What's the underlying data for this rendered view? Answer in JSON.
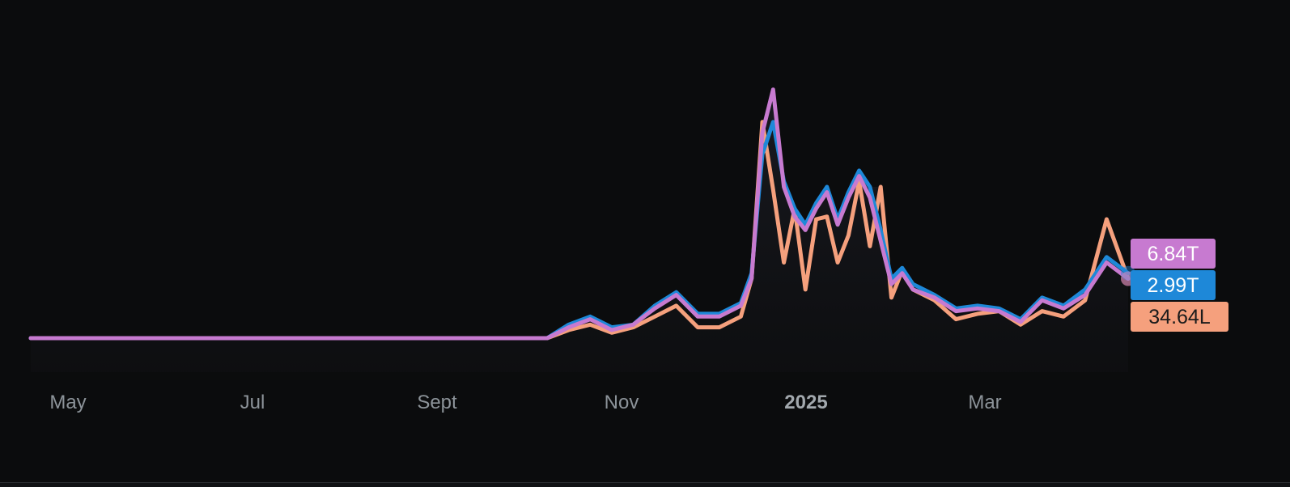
{
  "chart_data": {
    "type": "line",
    "title": "",
    "xlabel": "",
    "ylabel": "",
    "x_tick_labels": [
      "May",
      "Jul",
      "Sept",
      "Nov",
      "2025",
      "Mar"
    ],
    "x_tick_bold": [
      false,
      false,
      false,
      false,
      true,
      false
    ],
    "x_range": [
      0,
      51
    ],
    "ylim": [
      0,
      100
    ],
    "grid": false,
    "legend": "none",
    "x": [
      0,
      2,
      4,
      6,
      8,
      10,
      12,
      14,
      16,
      18,
      20,
      22,
      24,
      25,
      26,
      27,
      28,
      29,
      30,
      31,
      32,
      33,
      33.5,
      34,
      34.5,
      35,
      35.5,
      36,
      36.5,
      37,
      37.5,
      38,
      38.5,
      39,
      39.5,
      40,
      40.5,
      41,
      42,
      43,
      44,
      45,
      46,
      47,
      48,
      49,
      50,
      51
    ],
    "series": [
      {
        "color": "#f5a07d",
        "values": [
          0,
          0,
          0,
          0,
          0,
          0,
          0,
          0,
          0,
          0,
          0,
          0,
          0,
          3,
          5,
          2,
          4,
          8,
          12,
          4,
          4,
          8,
          22,
          80,
          55,
          28,
          48,
          18,
          44,
          45,
          28,
          38,
          58,
          34,
          56,
          15,
          25,
          18,
          14,
          7,
          9,
          10,
          5,
          10,
          8,
          14,
          44,
          22
        ]
      },
      {
        "color": "#1e88d8",
        "values": [
          0,
          0,
          0,
          0,
          0,
          0,
          0,
          0,
          0,
          0,
          0,
          0,
          0,
          5,
          8,
          4,
          5,
          12,
          17,
          9,
          9,
          13,
          24,
          68,
          80,
          58,
          48,
          42,
          50,
          56,
          44,
          54,
          62,
          56,
          40,
          22,
          26,
          20,
          16,
          11,
          12,
          11,
          7,
          15,
          12,
          18,
          30,
          24
        ]
      },
      {
        "color": "#c77ad0",
        "values": [
          0,
          0,
          0,
          0,
          0,
          0,
          0,
          0,
          0,
          0,
          0,
          0,
          0,
          4,
          7,
          3,
          5,
          11,
          16,
          8,
          8,
          12,
          22,
          76,
          92,
          56,
          45,
          40,
          48,
          54,
          42,
          52,
          60,
          52,
          36,
          20,
          24,
          18,
          15,
          10,
          11,
          10,
          6,
          14,
          11,
          16,
          28,
          22
        ]
      }
    ],
    "end_value_tags": [
      {
        "label": "6.84T",
        "background": "#c77ad0",
        "text_color": "#ffffff"
      },
      {
        "label": "2.99T",
        "background": "#1e88d8",
        "text_color": "#ffffff"
      },
      {
        "label": "34.64L",
        "background": "#f5a07d",
        "text_color": "#1b1b1b"
      }
    ]
  },
  "colors": {
    "background": "#0b0c0d",
    "tick_text": "#8c9399",
    "area_fill": "#14151a"
  }
}
